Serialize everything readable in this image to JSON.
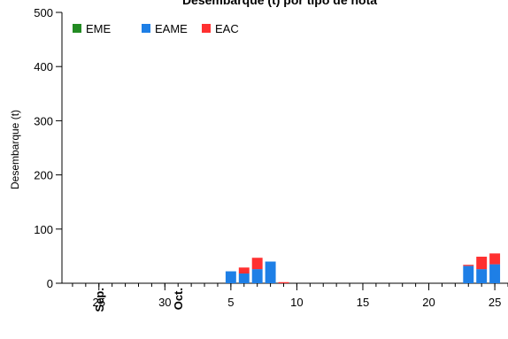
{
  "chart_data": {
    "type": "bar",
    "stacked": true,
    "title": "Desembarque (t) por tipo de nota",
    "ylabel": "Desembarque (t)",
    "xlabel": "",
    "ylim": [
      0,
      500
    ],
    "yticks": [
      0,
      100,
      200,
      300,
      400,
      500
    ],
    "x_start_date": "2023-09-24",
    "xticks": [
      {
        "day": 25,
        "label": "25"
      },
      {
        "day": 30,
        "label": "30"
      },
      {
        "day": 35,
        "label": "5"
      },
      {
        "day": 40,
        "label": "10"
      },
      {
        "day": 45,
        "label": "15"
      },
      {
        "day": 50,
        "label": "20"
      },
      {
        "day": 55,
        "label": "25"
      }
    ],
    "month_labels": [
      {
        "day": 25,
        "label": "Sep."
      },
      {
        "day": 31,
        "label": "Oct."
      }
    ],
    "legend_position": "top-left",
    "series": [
      {
        "name": "EME",
        "color": "#228b22",
        "values": [
          {
            "x": "Oct 5",
            "y": 0
          },
          {
            "x": "Oct 6",
            "y": 0
          },
          {
            "x": "Oct 7",
            "y": 0
          },
          {
            "x": "Oct 8",
            "y": 0
          },
          {
            "x": "Oct 9",
            "y": 0
          },
          {
            "x": "Oct 23",
            "y": 0
          },
          {
            "x": "Oct 24",
            "y": 0
          },
          {
            "x": "Oct 25",
            "y": 0
          }
        ]
      },
      {
        "name": "EAME",
        "color": "#1e7fe6",
        "values": [
          {
            "x": "Oct 5",
            "y": 22
          },
          {
            "x": "Oct 6",
            "y": 18
          },
          {
            "x": "Oct 7",
            "y": 26
          },
          {
            "x": "Oct 8",
            "y": 40
          },
          {
            "x": "Oct 9",
            "y": 0
          },
          {
            "x": "Oct 23",
            "y": 32
          },
          {
            "x": "Oct 24",
            "y": 26
          },
          {
            "x": "Oct 25",
            "y": 35
          }
        ]
      },
      {
        "name": "EAC",
        "color": "#ff3030",
        "values": [
          {
            "x": "Oct 5",
            "y": 0
          },
          {
            "x": "Oct 6",
            "y": 11
          },
          {
            "x": "Oct 7",
            "y": 21
          },
          {
            "x": "Oct 8",
            "y": 0
          },
          {
            "x": "Oct 9",
            "y": 2
          },
          {
            "x": "Oct 23",
            "y": 2
          },
          {
            "x": "Oct 24",
            "y": 23
          },
          {
            "x": "Oct 25",
            "y": 20
          }
        ]
      }
    ]
  }
}
